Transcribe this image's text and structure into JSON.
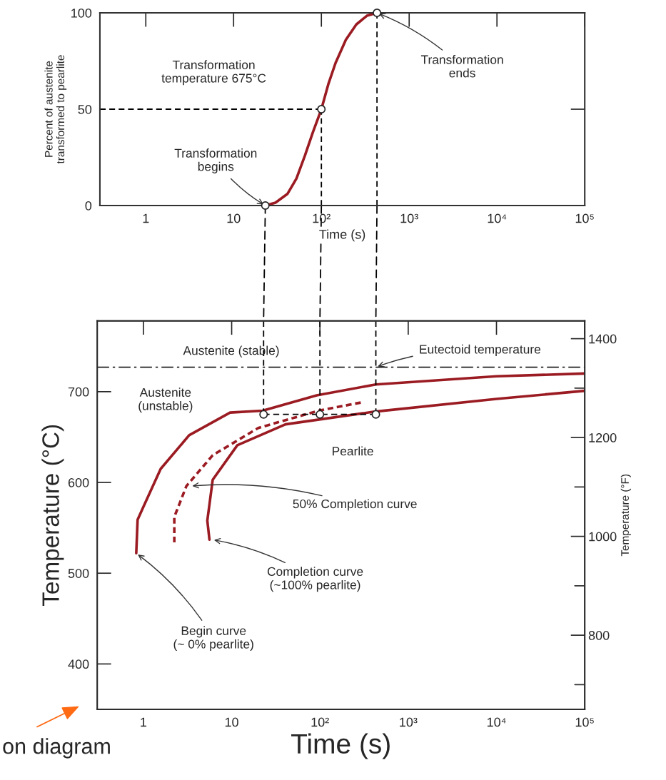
{
  "chart_data": [
    {
      "type": "line",
      "xlabel": "Time (s)",
      "ylabel": "Percent of austenite\ntransformed to pearlite",
      "log": "x",
      "grid": false,
      "legend": false,
      "xlim": [
        0.3,
        100000
      ],
      "xticks": [
        1,
        10,
        {
          "value": 100,
          "label": "10²"
        },
        {
          "value": 1000,
          "label": "10³"
        },
        {
          "value": 10000,
          "label": "10⁴"
        },
        {
          "value": 100000,
          "label": "10⁵"
        }
      ],
      "ylim": [
        0,
        100
      ],
      "yticks": [
        0,
        50,
        100
      ],
      "series": [
        {
          "color": "#9b1b22",
          "x": [
            23,
            30,
            41,
            52,
            65,
            80,
            100,
            120,
            145,
            190,
            250,
            330,
            430
          ],
          "values": [
            0,
            1.5,
            6,
            14,
            26,
            38,
            50,
            63,
            74,
            86,
            94,
            98.5,
            100
          ]
        },
        {
          "color": "#000000",
          "line_style": "dashed",
          "x": [
            0.3,
            100
          ],
          "values": [
            50,
            50
          ]
        },
        {
          "color": "#000000",
          "line_style": "dashed",
          "x": [
            100,
            100
          ],
          "values": [
            50,
            0
          ]
        },
        {
          "color": "#000000",
          "line_style": "dashed",
          "x": [
            430,
            430
          ],
          "values": [
            100,
            0
          ]
        },
        {
          "type": "scatter",
          "color": "#ffffff",
          "marker": "circle",
          "x": [
            23,
            100,
            430
          ],
          "values": [
            0,
            50,
            100
          ]
        }
      ],
      "annotations": [
        "Transformation\ntemperature 675°C",
        {
          "text": "Transformation\nbegins",
          "x": 23,
          "y": 0
        },
        {
          "text": "Transformation\nends",
          "x": 430,
          "y": 100
        }
      ]
    },
    {
      "type": "line",
      "xlabel": "Time (s)",
      "ylabel": "Temperature (°C)",
      "y2label": "Temperature (°F)",
      "log": "x",
      "grid": false,
      "legend": false,
      "xlim": [
        0.3,
        100000
      ],
      "xticks": [
        1,
        10,
        {
          "value": 100,
          "label": "10²"
        },
        {
          "value": 1000,
          "label": "10³"
        },
        {
          "value": 10000,
          "label": "10⁴"
        },
        {
          "value": 100000,
          "label": "10⁵"
        }
      ],
      "ylim": [
        350,
        778
      ],
      "yticks": [
        400,
        500,
        600,
        700
      ],
      "y2lim": [
        650,
        1436
      ],
      "y2ticks": [
        {
          "value": 700,
          "label": null
        },
        800,
        {
          "value": 900,
          "label": null
        },
        1000,
        {
          "value": 1100,
          "label": null
        },
        1200,
        {
          "value": 1300,
          "label": null
        },
        1400
      ],
      "ref_lines": [
        {
          "axis": "y",
          "value": 727,
          "color": "#000000",
          "line_style": "dashdot"
        }
      ],
      "series": [
        {
          "color": "#9b1b22",
          "x": [
            0.83,
            0.86,
            1.0,
            1.57,
            3.3,
            9.6,
            22.4,
            92,
            430,
            10000,
            100000
          ],
          "values": [
            522,
            559,
            573,
            615,
            652,
            677,
            679,
            696,
            708,
            717,
            720
          ]
        },
        {
          "color": "#9b1b22",
          "line_style": "dashed",
          "x": [
            2.24,
            2.24,
            3.07,
            6.1,
            20,
            96,
            290
          ],
          "values": [
            534,
            562,
            596,
            630,
            660,
            679,
            688
          ]
        },
        {
          "color": "#9b1b22",
          "x": [
            5.6,
            5.3,
            6.1,
            11.6,
            40.7,
            415,
            10000,
            100000
          ],
          "values": [
            537,
            558,
            603,
            641,
            664,
            678,
            692,
            701
          ]
        },
        {
          "color": "#000000",
          "line_style": "dashed",
          "x": [
            23,
            23
          ],
          "values": [
            778,
            675
          ]
        },
        {
          "color": "#000000",
          "line_style": "dashed",
          "x": [
            100,
            100
          ],
          "values": [
            778,
            675
          ]
        },
        {
          "color": "#000000",
          "line_style": "dashed",
          "x": [
            430,
            430
          ],
          "values": [
            778,
            675
          ]
        },
        {
          "color": "#000000",
          "line_style": "dashed",
          "x": [
            23,
            430
          ],
          "values": [
            675,
            675
          ]
        },
        {
          "type": "scatter",
          "color": "#ffffff",
          "marker": "circle",
          "x": [
            23,
            100,
            430
          ],
          "values": [
            675,
            675,
            675
          ]
        }
      ],
      "annotations": [
        "Austenite (stable)",
        "Austenite\n(unstable)",
        "Pearlite",
        {
          "text": "Eutectoid temperature",
          "x": 430,
          "y": 727
        },
        {
          "text": "50% Completion curve",
          "x": 3.4,
          "y": 596
        },
        {
          "text": "Completion curve\n(~100% pearlite)",
          "x": 6,
          "y": 537
        },
        {
          "text": "Begin curve\n(~ 0% pearlite)",
          "x": 0.83,
          "y": 522
        },
        "on diagram"
      ]
    }
  ]
}
